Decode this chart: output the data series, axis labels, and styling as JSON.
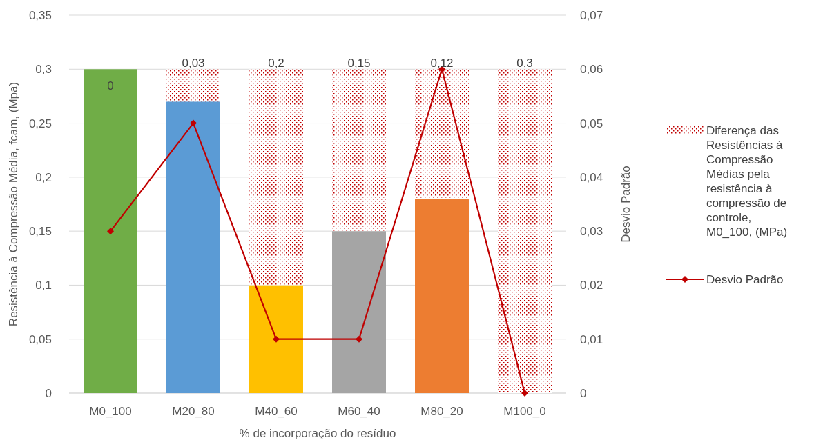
{
  "chart_data": {
    "type": "bar",
    "stacked": true,
    "categories": [
      "M0_100",
      "M20_80",
      "M40_60",
      "M60_40",
      "M80_20",
      "M100_0"
    ],
    "xlabel": "% de incorporação do resíduo",
    "ylabel": "Resistência à Compressão Média, fcam, (Mpa)",
    "y2label": "Desvio Padrão",
    "ylim": [
      0,
      0.35
    ],
    "yticks": [
      0,
      {
        "value": 0.05,
        "label": "0,05"
      },
      {
        "value": 0.1,
        "label": "0,1"
      },
      {
        "value": 0.15,
        "label": "0,15"
      },
      {
        "value": 0.2,
        "label": "0,2"
      },
      {
        "value": 0.25,
        "label": "0,25"
      },
      {
        "value": 0.3,
        "label": "0,3"
      },
      {
        "value": 0.35,
        "label": "0,35"
      }
    ],
    "y2lim": [
      0,
      0.07
    ],
    "y2ticks": [
      0,
      {
        "value": 0.01,
        "label": "0,01"
      },
      {
        "value": 0.02,
        "label": "0,02"
      },
      {
        "value": 0.03,
        "label": "0,03"
      },
      {
        "value": 0.04,
        "label": "0,04"
      },
      {
        "value": 0.05,
        "label": "0,05"
      },
      {
        "value": 0.06,
        "label": "0,06"
      },
      {
        "value": 0.07,
        "label": "0,07"
      }
    ],
    "grid": "y",
    "legend": "right",
    "series": [
      {
        "colors": [
          "#70ad47",
          "#5b9bd5",
          "#ffc000",
          "#a5a5a5",
          "#ed7d31",
          "#ed7d31"
        ],
        "values": [
          0.3,
          0.27,
          0.1,
          0.15,
          0.18,
          0
        ]
      },
      {
        "name": "Diferença das Resistências à Compressão Médias pela resistência à compressão de controle, M0_100, (MPa)",
        "color": "#c00000",
        "values": [
          0,
          0.03,
          0.2,
          0.15,
          0.12,
          0.3
        ],
        "value_labels": [
          "0",
          "0,03",
          "0,2",
          "0,15",
          "0,12",
          "0,3"
        ]
      },
      {
        "type": "line",
        "axis": "y2",
        "name": "Desvio Padrão",
        "color": "#c00000",
        "marker": "diamond",
        "line_style": "solid",
        "values": [
          0.03,
          0.05,
          0.01,
          0.01,
          0.06,
          0
        ]
      }
    ]
  }
}
